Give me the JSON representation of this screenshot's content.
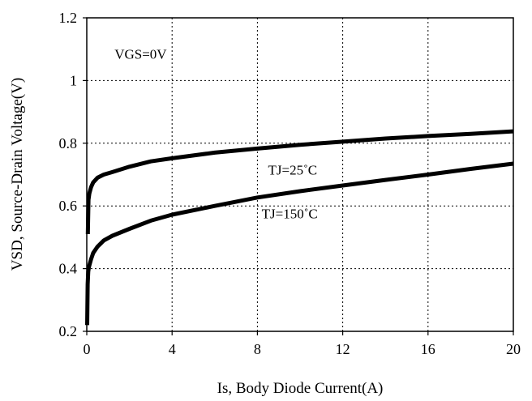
{
  "chart_data": {
    "type": "line",
    "xlabel": "Is, Body Diode Current(A)",
    "ylabel": "VSD, Source-Drain Voltage(V)",
    "xlim": [
      0,
      20
    ],
    "ylim": [
      0.2,
      1.2
    ],
    "xticks": [
      0,
      4,
      8,
      12,
      16,
      20
    ],
    "yticks": [
      0.2,
      0.4,
      0.6,
      0.8,
      1.0,
      1.2
    ],
    "ytick_labels": [
      "0.2",
      "0.4",
      "0.6",
      "0.8",
      "1",
      "1.2"
    ],
    "grid": true,
    "annotations": [
      {
        "text": "VGS=0V",
        "x": 1.3,
        "y": 1.07
      },
      {
        "text": "TJ=25˚C",
        "x": 8.5,
        "y": 0.7
      },
      {
        "text": "TJ=150˚C",
        "x": 8.2,
        "y": 0.56
      }
    ],
    "series": [
      {
        "name": "TJ=25˚C",
        "x": [
          0.05,
          0.08,
          0.12,
          0.2,
          0.3,
          0.5,
          0.8,
          1.2,
          2,
          3,
          4,
          6,
          8,
          10,
          12,
          14,
          16,
          18,
          20
        ],
        "y": [
          0.51,
          0.62,
          0.64,
          0.66,
          0.675,
          0.69,
          0.7,
          0.708,
          0.725,
          0.742,
          0.752,
          0.77,
          0.783,
          0.795,
          0.805,
          0.815,
          0.823,
          0.83,
          0.838
        ]
      },
      {
        "name": "TJ=150˚C",
        "x": [
          0.02,
          0.04,
          0.07,
          0.1,
          0.2,
          0.3,
          0.5,
          0.8,
          1.2,
          2,
          3,
          4,
          6,
          8,
          10,
          12,
          14,
          16,
          18,
          20
        ],
        "y": [
          0.22,
          0.35,
          0.39,
          0.405,
          0.43,
          0.45,
          0.47,
          0.49,
          0.505,
          0.527,
          0.553,
          0.572,
          0.6,
          0.627,
          0.647,
          0.665,
          0.683,
          0.7,
          0.718,
          0.735
        ]
      }
    ]
  }
}
